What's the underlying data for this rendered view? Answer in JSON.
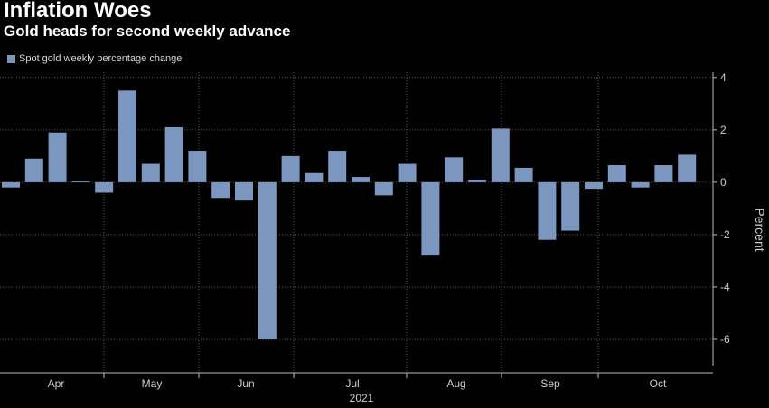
{
  "chart_data": {
    "type": "bar",
    "title": "Inflation Woes",
    "subtitle": "Gold heads for second weekly advance",
    "ylabel": "Percent",
    "ylim": [
      -7,
      4.2
    ],
    "yticks": [
      4,
      2,
      0,
      -2,
      -4,
      -6
    ],
    "grid": true,
    "legend_placement": "top-left",
    "x_month_labels": [
      "Apr",
      "May",
      "Jun",
      "Jul",
      "Aug",
      "Sep",
      "Oct"
    ],
    "x_year_label": "2021",
    "series": [
      {
        "name": "Spot gold weekly percentage change",
        "color": "#7b97bf",
        "values": [
          -0.2,
          0.9,
          1.9,
          0.05,
          -0.4,
          3.5,
          0.7,
          2.1,
          1.2,
          -0.6,
          -0.7,
          -6.0,
          1.0,
          0.35,
          1.2,
          0.2,
          -0.5,
          0.7,
          -2.8,
          0.95,
          0.1,
          2.05,
          0.55,
          -2.2,
          -1.85,
          -0.25,
          0.65,
          -0.2,
          0.65,
          1.05
        ]
      }
    ]
  }
}
